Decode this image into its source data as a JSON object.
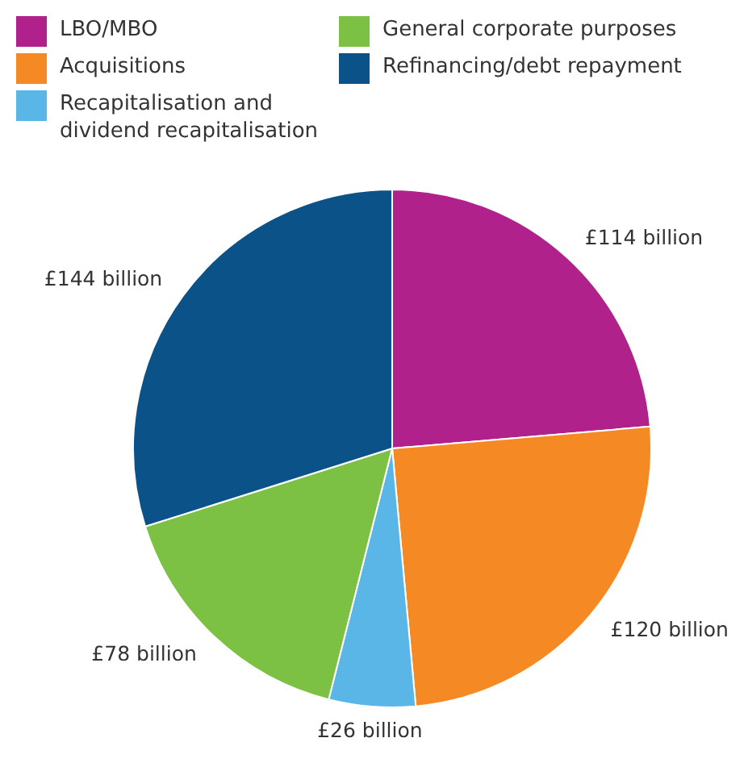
{
  "chart_data": {
    "type": "pie",
    "categories": [
      "LBO/MBO",
      "Acquisitions",
      "Recapitalisation and dividend recapitalisation",
      "General corporate purposes",
      "Refinancing/debt repayment"
    ],
    "values": [
      114,
      120,
      26,
      78,
      144
    ],
    "colors": [
      "#b0218c",
      "#f58a25",
      "#5bb6e8",
      "#7cc143",
      "#0a5287"
    ],
    "value_labels": [
      "£114 billion",
      "£120 billion",
      "£26 billion",
      "£78 billion",
      "£144 billion"
    ],
    "legend": "top"
  }
}
